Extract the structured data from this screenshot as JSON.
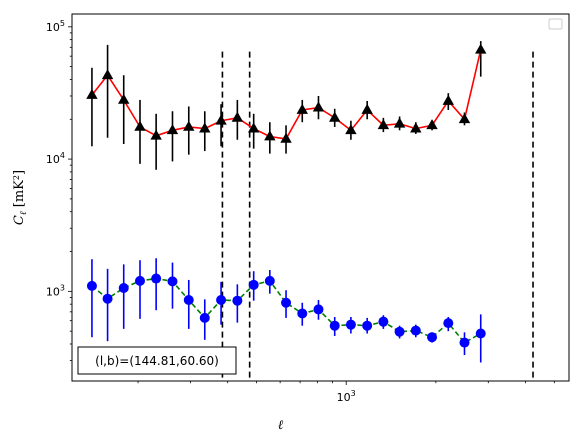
{
  "chart_data": {
    "type": "line",
    "xscale": "log",
    "yscale": "log",
    "xlim": [
      120,
      5600
    ],
    "ylim": [
      210,
      125000
    ],
    "xlabel": "ℓ",
    "ylabel": "C_ℓ [mK²]",
    "x_ticks": [
      {
        "value": 1000,
        "base": "10",
        "exp": "3"
      }
    ],
    "y_ticks": [
      {
        "value": 1000,
        "base": "10",
        "exp": "3"
      },
      {
        "value": 10000,
        "base": "10",
        "exp": "4"
      },
      {
        "value": 100000,
        "base": "10",
        "exp": "5"
      }
    ],
    "vlines": [
      384,
      474,
      4240
    ],
    "annotation": "(l,b)=(144.81,60.60)",
    "legend": "top-right",
    "series": [
      {
        "color": "#ff0000",
        "marker": "triangle",
        "marker_color": "#000000",
        "errbar_color": "#000000",
        "linestyle": "solid",
        "points": [
          {
            "x": 140,
            "y": 30500,
            "lo": 12500,
            "hi": 49000
          },
          {
            "x": 158,
            "y": 43000,
            "lo": 14500,
            "hi": 73000
          },
          {
            "x": 179,
            "y": 28000,
            "lo": 13000,
            "hi": 43000
          },
          {
            "x": 203,
            "y": 17500,
            "lo": 9200,
            "hi": 28000
          },
          {
            "x": 230,
            "y": 15000,
            "lo": 8300,
            "hi": 22000
          },
          {
            "x": 261,
            "y": 16500,
            "lo": 9600,
            "hi": 23000
          },
          {
            "x": 296,
            "y": 17500,
            "lo": 10800,
            "hi": 25000
          },
          {
            "x": 335,
            "y": 17000,
            "lo": 11500,
            "hi": 23000
          },
          {
            "x": 380,
            "y": 19500,
            "lo": 12500,
            "hi": 26000
          },
          {
            "x": 431,
            "y": 20500,
            "lo": 14000,
            "hi": 28000
          },
          {
            "x": 489,
            "y": 17000,
            "lo": 12000,
            "hi": 22000
          },
          {
            "x": 554,
            "y": 14800,
            "lo": 11000,
            "hi": 19000
          },
          {
            "x": 628,
            "y": 14200,
            "lo": 11000,
            "hi": 18000
          },
          {
            "x": 712,
            "y": 23500,
            "lo": 19000,
            "hi": 28000
          },
          {
            "x": 807,
            "y": 24500,
            "lo": 20000,
            "hi": 30000
          },
          {
            "x": 915,
            "y": 20500,
            "lo": 17500,
            "hi": 24000
          },
          {
            "x": 1037,
            "y": 16500,
            "lo": 14000,
            "hi": 19500
          },
          {
            "x": 1176,
            "y": 23500,
            "lo": 20000,
            "hi": 27500
          },
          {
            "x": 1333,
            "y": 18000,
            "lo": 16000,
            "hi": 20500
          },
          {
            "x": 1511,
            "y": 18500,
            "lo": 16500,
            "hi": 21000
          },
          {
            "x": 1713,
            "y": 17000,
            "lo": 15500,
            "hi": 19000
          },
          {
            "x": 1942,
            "y": 18000,
            "lo": 16500,
            "hi": 19500
          },
          {
            "x": 2202,
            "y": 27500,
            "lo": 23500,
            "hi": 31500
          },
          {
            "x": 2496,
            "y": 20000,
            "lo": 18000,
            "hi": 22500
          },
          {
            "x": 2830,
            "y": 67000,
            "lo": 42000,
            "hi": 78000
          }
        ]
      },
      {
        "color": "#008000",
        "marker": "circle",
        "marker_color": "#0000ff",
        "errbar_color": "#0000ff",
        "linestyle": "dashed",
        "points": [
          {
            "x": 140,
            "y": 1100,
            "lo": 450,
            "hi": 1750
          },
          {
            "x": 158,
            "y": 880,
            "lo": 420,
            "hi": 1480
          },
          {
            "x": 179,
            "y": 1060,
            "lo": 520,
            "hi": 1600
          },
          {
            "x": 203,
            "y": 1200,
            "lo": 620,
            "hi": 1720
          },
          {
            "x": 230,
            "y": 1250,
            "lo": 720,
            "hi": 1780
          },
          {
            "x": 261,
            "y": 1190,
            "lo": 740,
            "hi": 1650
          },
          {
            "x": 296,
            "y": 860,
            "lo": 520,
            "hi": 1220
          },
          {
            "x": 335,
            "y": 630,
            "lo": 430,
            "hi": 870
          },
          {
            "x": 380,
            "y": 860,
            "lo": 560,
            "hi": 1180
          },
          {
            "x": 431,
            "y": 850,
            "lo": 580,
            "hi": 1130
          },
          {
            "x": 489,
            "y": 1120,
            "lo": 850,
            "hi": 1420
          },
          {
            "x": 554,
            "y": 1200,
            "lo": 960,
            "hi": 1450
          },
          {
            "x": 628,
            "y": 820,
            "lo": 630,
            "hi": 1020
          },
          {
            "x": 712,
            "y": 680,
            "lo": 550,
            "hi": 820
          },
          {
            "x": 807,
            "y": 730,
            "lo": 610,
            "hi": 860
          },
          {
            "x": 915,
            "y": 550,
            "lo": 460,
            "hi": 640
          },
          {
            "x": 1037,
            "y": 560,
            "lo": 480,
            "hi": 640
          },
          {
            "x": 1176,
            "y": 550,
            "lo": 480,
            "hi": 630
          },
          {
            "x": 1333,
            "y": 590,
            "lo": 520,
            "hi": 660
          },
          {
            "x": 1511,
            "y": 495,
            "lo": 440,
            "hi": 550
          },
          {
            "x": 1713,
            "y": 505,
            "lo": 450,
            "hi": 560
          },
          {
            "x": 1942,
            "y": 450,
            "lo": 410,
            "hi": 490
          },
          {
            "x": 2202,
            "y": 575,
            "lo": 500,
            "hi": 640
          },
          {
            "x": 2496,
            "y": 410,
            "lo": 330,
            "hi": 490
          },
          {
            "x": 2830,
            "y": 480,
            "lo": 290,
            "hi": 670
          }
        ]
      }
    ]
  }
}
